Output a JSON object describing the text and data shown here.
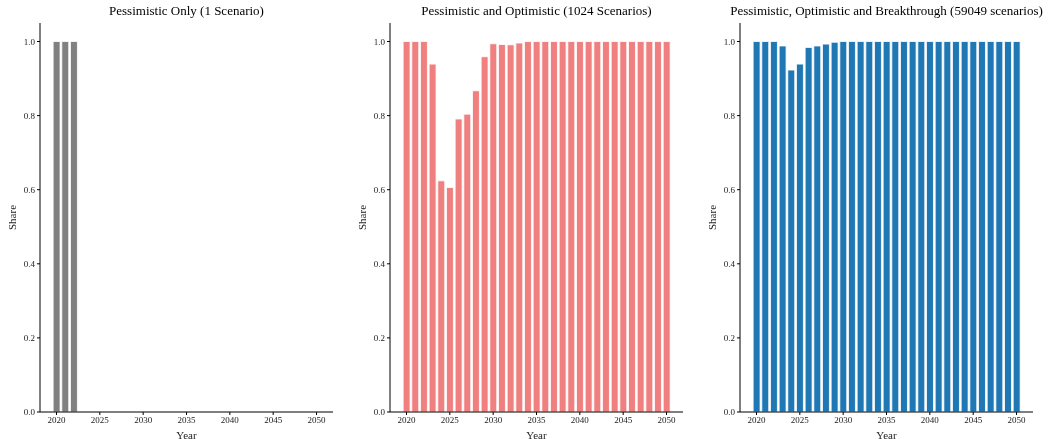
{
  "chart_data": [
    {
      "type": "bar",
      "title": "Pessimistic Only (1 Scenario)",
      "xlabel": "Year",
      "ylabel": "Share",
      "color": "#808080",
      "x": [
        2020,
        2021,
        2022
      ],
      "values": [
        1.0,
        1.0,
        1.0
      ],
      "xlim": [
        2018.1,
        2051.9
      ],
      "xticks": [
        2020,
        2025,
        2030,
        2035,
        2040,
        2045,
        2050
      ],
      "ylim": [
        0,
        1.05
      ],
      "yticks": [
        {
          "value": 0,
          "label": "0.0"
        },
        {
          "value": 0.2,
          "label": "0.2"
        },
        {
          "value": 0.4,
          "label": "0.4"
        },
        {
          "value": 0.6,
          "label": "0.6"
        },
        {
          "value": 0.8,
          "label": "0.8"
        },
        {
          "value": 1,
          "label": "1.0"
        }
      ]
    },
    {
      "type": "bar",
      "title": "Pessimistic and Optimistic (1024 Scenarios)",
      "xlabel": "Year",
      "ylabel": "Share",
      "color": "#f08080",
      "x": [
        2020,
        2021,
        2022,
        2023,
        2024,
        2025,
        2026,
        2027,
        2028,
        2029,
        2030,
        2031,
        2032,
        2033,
        2034,
        2035,
        2036,
        2037,
        2038,
        2039,
        2040,
        2041,
        2042,
        2043,
        2044,
        2045,
        2046,
        2047,
        2048,
        2049,
        2050
      ],
      "values": [
        1.0,
        1.0,
        1.0,
        0.939,
        0.624,
        0.606,
        0.791,
        0.804,
        0.867,
        0.959,
        0.994,
        0.992,
        0.991,
        0.996,
        1.0,
        1.0,
        1.0,
        1.0,
        1.0,
        1.0,
        1.0,
        1.0,
        1.0,
        1.0,
        1.0,
        1.0,
        1.0,
        1.0,
        1.0,
        1.0,
        1.0
      ],
      "xlim": [
        2018.1,
        2051.9
      ],
      "xticks": [
        2020,
        2025,
        2030,
        2035,
        2040,
        2045,
        2050
      ],
      "ylim": [
        0,
        1.05
      ],
      "yticks": [
        {
          "value": 0,
          "label": "0.0"
        },
        {
          "value": 0.2,
          "label": "0.2"
        },
        {
          "value": 0.4,
          "label": "0.4"
        },
        {
          "value": 0.6,
          "label": "0.6"
        },
        {
          "value": 0.8,
          "label": "0.8"
        },
        {
          "value": 1,
          "label": "1.0"
        }
      ]
    },
    {
      "type": "bar",
      "title": "Pessimistic, Optimistic and Breakthrough (59049 scenarios)",
      "xlabel": "Year",
      "ylabel": "Share",
      "color": "#1f77b4",
      "x": [
        2020,
        2021,
        2022,
        2023,
        2024,
        2025,
        2026,
        2027,
        2028,
        2029,
        2030,
        2031,
        2032,
        2033,
        2034,
        2035,
        2036,
        2037,
        2038,
        2039,
        2040,
        2041,
        2042,
        2043,
        2044,
        2045,
        2046,
        2047,
        2048,
        2049,
        2050
      ],
      "values": [
        1.0,
        1.0,
        1.0,
        0.988,
        0.923,
        0.939,
        0.984,
        0.988,
        0.993,
        0.998,
        1.0,
        1.0,
        1.0,
        1.0,
        1.0,
        1.0,
        1.0,
        1.0,
        1.0,
        1.0,
        1.0,
        1.0,
        1.0,
        1.0,
        1.0,
        1.0,
        1.0,
        1.0,
        1.0,
        1.0,
        1.0
      ],
      "xlim": [
        2018.1,
        2051.9
      ],
      "xticks": [
        2020,
        2025,
        2030,
        2035,
        2040,
        2045,
        2050
      ],
      "ylim": [
        0,
        1.05
      ],
      "yticks": [
        {
          "value": 0,
          "label": "0.0"
        },
        {
          "value": 0.2,
          "label": "0.2"
        },
        {
          "value": 0.4,
          "label": "0.4"
        },
        {
          "value": 0.6,
          "label": "0.6"
        },
        {
          "value": 0.8,
          "label": "0.8"
        },
        {
          "value": 1,
          "label": "1.0"
        }
      ]
    }
  ]
}
